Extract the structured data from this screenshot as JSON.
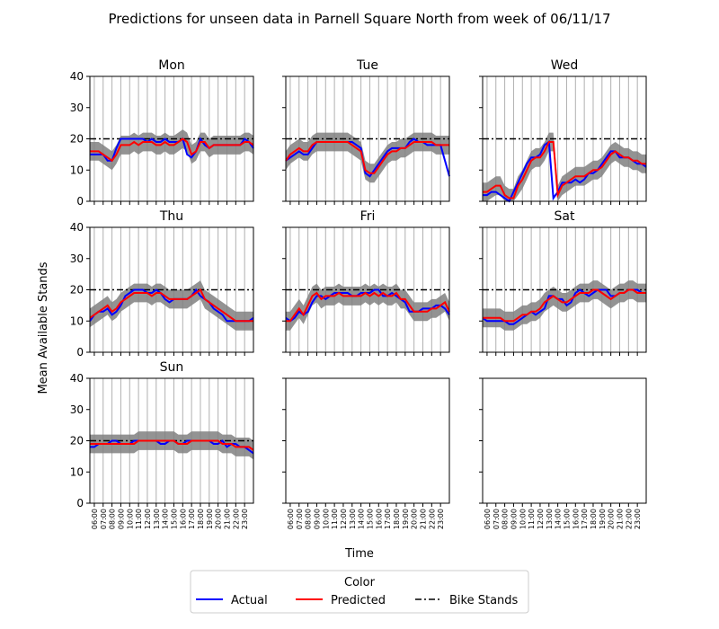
{
  "chart_data": {
    "type": "line",
    "title": "Predictions for unseen data in Parnell Square North from week of 06/11/17",
    "xlabel": "Time",
    "ylabel": "Mean Available Stands",
    "ylim": [
      0,
      40
    ],
    "yticks": [
      0,
      10,
      20,
      30,
      40
    ],
    "x_ticks": [
      "06:00",
      "07:00",
      "08:00",
      "09:00",
      "10:00",
      "11:00",
      "12:00",
      "13:00",
      "14:00",
      "15:00",
      "16:00",
      "17:00",
      "18:00",
      "19:00",
      "20:00",
      "21:00",
      "22:00",
      "23:00"
    ],
    "x_range_hours": [
      5.5,
      24
    ],
    "grid": "vertical",
    "bike_stands": 20,
    "legend": {
      "title": "Color",
      "placement": "bottom-center",
      "entries": [
        {
          "label": "Actual",
          "color": "#0000ff",
          "style": "solid"
        },
        {
          "label": "Predicted",
          "color": "#ff0000",
          "style": "solid"
        },
        {
          "label": "Bike Stands",
          "color": "#000000",
          "style": "dashdot"
        }
      ]
    },
    "band_color": "#808080",
    "sample_hours": [
      5.5,
      6,
      6.5,
      7,
      7.5,
      8,
      8.5,
      9,
      9.5,
      10,
      10.5,
      11,
      11.5,
      12,
      12.5,
      13,
      13.5,
      14,
      14.5,
      15,
      15.5,
      16,
      16.5,
      17,
      17.5,
      18,
      18.5,
      19,
      19.5,
      20,
      20.5,
      21,
      21.5,
      22,
      22.5,
      23,
      23.5,
      24
    ],
    "panels": [
      {
        "day": "Mon",
        "actual": [
          15,
          15,
          15,
          15,
          13,
          13,
          17,
          20,
          20,
          20,
          20,
          20,
          20,
          19,
          20,
          19,
          19,
          20,
          19,
          19,
          19,
          20,
          15,
          14,
          16,
          20,
          18,
          17,
          18,
          18,
          18,
          18,
          18,
          18,
          18,
          20,
          19,
          17
        ],
        "predicted": [
          16,
          16,
          16,
          15,
          14,
          13,
          15,
          18,
          18,
          18,
          19,
          18,
          19,
          19,
          19,
          18,
          18,
          19,
          18,
          18,
          19,
          20,
          19,
          15,
          16,
          19,
          19,
          17,
          18,
          18,
          18,
          18,
          18,
          18,
          18,
          19,
          19,
          18
        ]
      },
      {
        "day": "Tue",
        "actual": [
          13,
          14,
          15,
          16,
          15,
          15,
          17,
          19,
          19,
          19,
          19,
          19,
          19,
          19,
          19,
          19,
          18,
          17,
          9,
          8,
          10,
          12,
          14,
          16,
          17,
          17,
          17,
          17,
          19,
          20,
          19,
          19,
          18,
          18,
          18,
          18,
          13,
          8
        ],
        "predicted": [
          13,
          15,
          16,
          17,
          16,
          16,
          18,
          19,
          19,
          19,
          19,
          19,
          19,
          19,
          19,
          18,
          17,
          16,
          10,
          9,
          9,
          11,
          13,
          15,
          16,
          16,
          17,
          17,
          18,
          19,
          19,
          19,
          19,
          19,
          18,
          18,
          18,
          18
        ]
      },
      {
        "day": "Wed",
        "actual": [
          2,
          2,
          3,
          3,
          2,
          1,
          0,
          3,
          6,
          9,
          12,
          14,
          14,
          15,
          18,
          19,
          1,
          3,
          6,
          6,
          6,
          7,
          6,
          7,
          9,
          9,
          10,
          12,
          14,
          16,
          16,
          14,
          14,
          14,
          13,
          12,
          12,
          11
        ],
        "predicted": [
          3,
          3,
          4,
          5,
          5,
          2,
          1,
          1,
          5,
          7,
          10,
          13,
          14,
          14,
          16,
          19,
          19,
          2,
          5,
          6,
          7,
          8,
          8,
          8,
          9,
          10,
          10,
          11,
          13,
          15,
          16,
          15,
          14,
          14,
          13,
          13,
          12,
          12
        ]
      },
      {
        "day": "Thu",
        "actual": [
          10,
          12,
          13,
          13,
          14,
          12,
          13,
          15,
          18,
          19,
          20,
          20,
          20,
          19,
          19,
          20,
          19,
          17,
          16,
          17,
          17,
          17,
          17,
          18,
          20,
          18,
          17,
          16,
          14,
          13,
          12,
          10,
          10,
          10,
          10,
          10,
          10,
          11
        ],
        "predicted": [
          11,
          12,
          13,
          14,
          15,
          13,
          14,
          16,
          17,
          18,
          19,
          19,
          19,
          19,
          18,
          19,
          19,
          18,
          17,
          17,
          17,
          17,
          17,
          18,
          19,
          20,
          17,
          16,
          15,
          14,
          13,
          12,
          11,
          10,
          10,
          10,
          10,
          10
        ]
      },
      {
        "day": "Fri",
        "actual": [
          11,
          10,
          11,
          13,
          12,
          13,
          16,
          18,
          18,
          17,
          18,
          19,
          19,
          19,
          19,
          18,
          18,
          19,
          19,
          19,
          20,
          20,
          18,
          18,
          19,
          18,
          17,
          16,
          13,
          13,
          13,
          14,
          14,
          14,
          15,
          15,
          14,
          12
        ],
        "predicted": [
          10,
          10,
          12,
          14,
          12,
          15,
          18,
          19,
          17,
          18,
          18,
          18,
          19,
          18,
          18,
          18,
          18,
          18,
          19,
          18,
          19,
          18,
          19,
          18,
          18,
          19,
          17,
          17,
          15,
          13,
          13,
          13,
          13,
          14,
          14,
          15,
          16,
          13
        ]
      },
      {
        "day": "Sat",
        "actual": [
          11,
          10,
          10,
          10,
          10,
          10,
          9,
          9,
          10,
          11,
          12,
          13,
          12,
          13,
          14,
          18,
          18,
          17,
          17,
          15,
          16,
          19,
          20,
          19,
          18,
          19,
          20,
          20,
          20,
          18,
          18,
          19,
          19,
          20,
          20,
          20,
          19,
          19
        ],
        "predicted": [
          11,
          11,
          11,
          11,
          11,
          10,
          10,
          10,
          11,
          12,
          12,
          13,
          13,
          14,
          16,
          17,
          18,
          17,
          16,
          16,
          17,
          18,
          19,
          19,
          19,
          20,
          20,
          19,
          18,
          17,
          18,
          19,
          19,
          20,
          20,
          19,
          19,
          19
        ]
      },
      {
        "day": "Sun",
        "actual": [
          18,
          18,
          19,
          19,
          19,
          20,
          20,
          19,
          19,
          19,
          20,
          20,
          20,
          20,
          20,
          20,
          19,
          19,
          20,
          20,
          19,
          19,
          20,
          20,
          20,
          20,
          20,
          20,
          19,
          19,
          20,
          18,
          19,
          19,
          18,
          18,
          17,
          16
        ],
        "predicted": [
          19,
          19,
          19,
          19,
          19,
          19,
          19,
          19,
          19,
          19,
          19,
          20,
          20,
          20,
          20,
          20,
          20,
          20,
          20,
          20,
          19,
          19,
          19,
          20,
          20,
          20,
          20,
          20,
          20,
          20,
          19,
          19,
          19,
          18,
          18,
          18,
          18,
          17
        ]
      },
      {
        "day": "",
        "actual": [],
        "predicted": []
      },
      {
        "day": "",
        "actual": [],
        "predicted": []
      }
    ]
  }
}
